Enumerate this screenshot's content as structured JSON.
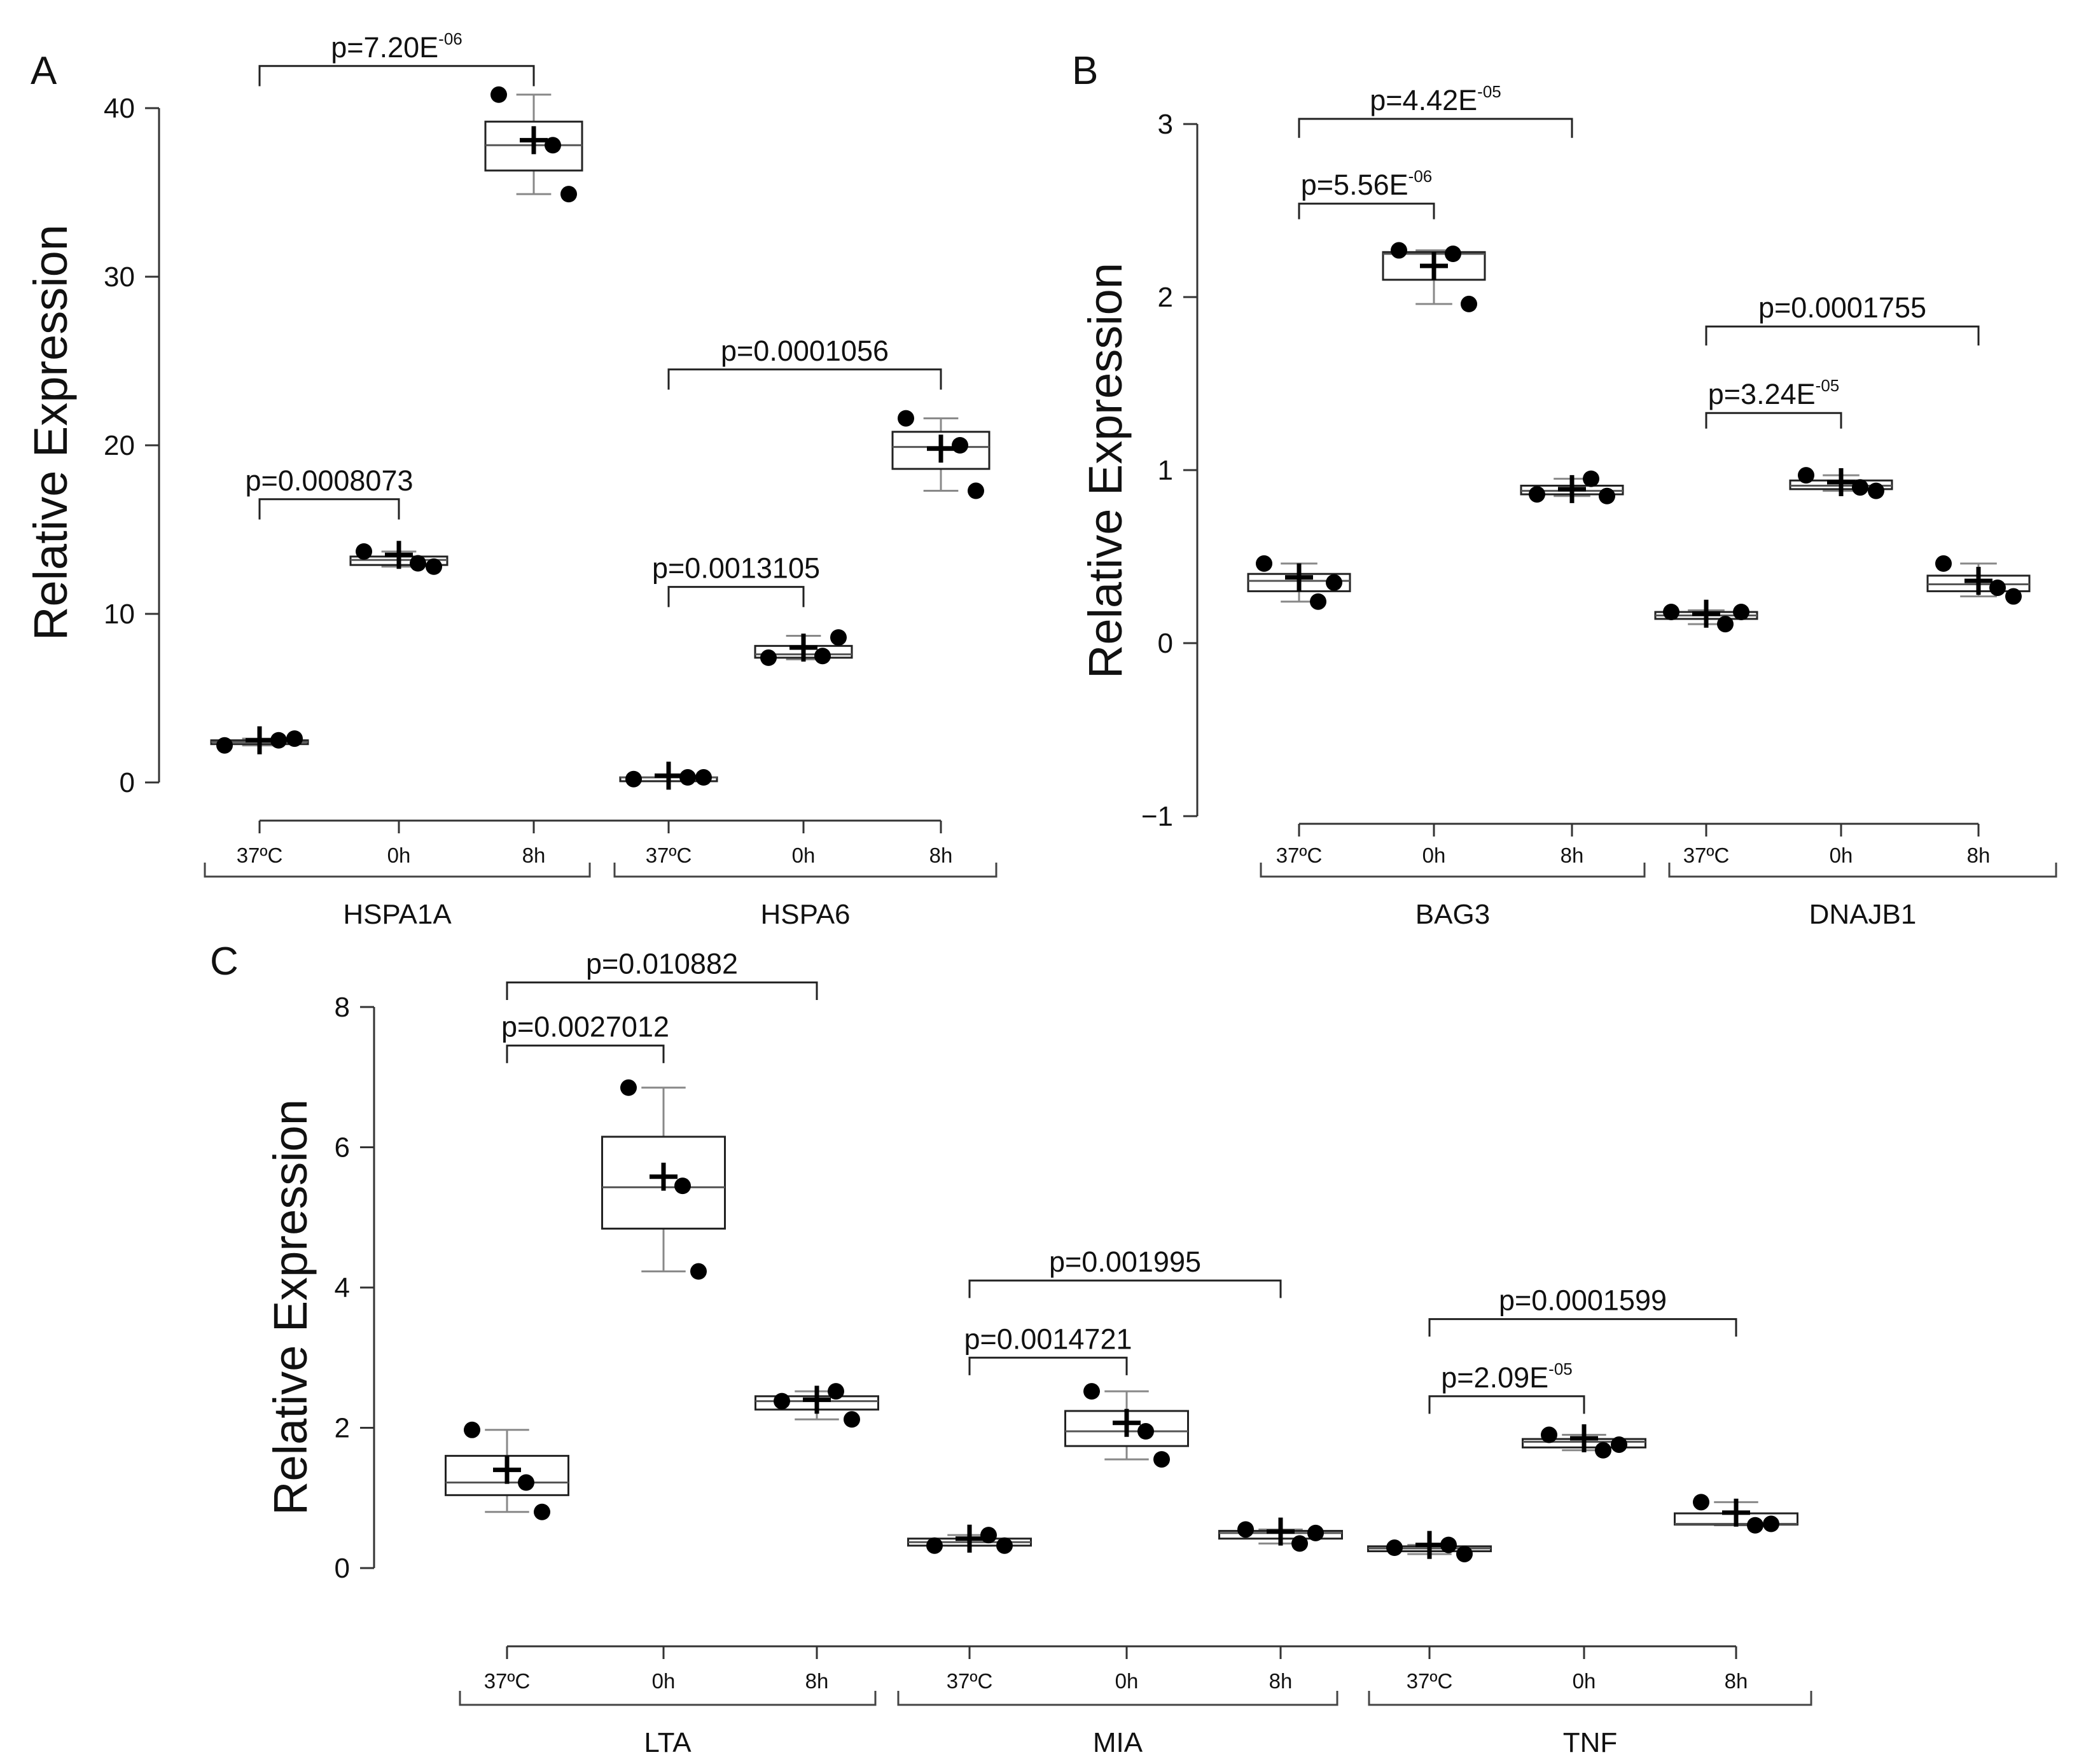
{
  "chart_data": [
    {
      "panel": "A",
      "type": "box",
      "ylabel": "Relative Expression",
      "ylim": [
        0,
        40
      ],
      "yticks": [
        0,
        10,
        20,
        30,
        40
      ],
      "groups": [
        {
          "name": "HSPA1A",
          "conditions": [
            {
              "label": "37ºC",
              "points": [
                2.2,
                2.5,
                2.6
              ],
              "mean": 2.5,
              "q1": 2.3,
              "median": 2.4,
              "q3": 2.5,
              "wlow": 2.2,
              "whigh": 2.6
            },
            {
              "label": "0h",
              "points": [
                13.7,
                13.0,
                12.8
              ],
              "mean": 13.5,
              "q1": 12.9,
              "median": 13.2,
              "q3": 13.4,
              "wlow": 12.8,
              "whigh": 13.7
            },
            {
              "label": "8h",
              "points": [
                40.8,
                37.8,
                34.9
              ],
              "mean": 38.1,
              "q1": 36.3,
              "median": 37.8,
              "q3": 39.2,
              "wlow": 34.9,
              "whigh": 40.8
            }
          ]
        },
        {
          "name": "HSPA6",
          "conditions": [
            {
              "label": "37ºC",
              "points": [
                0.2,
                0.3,
                0.3
              ],
              "mean": 0.4,
              "q1": 0.2,
              "median": 0.3,
              "q3": 0.3,
              "wlow": 0.2,
              "whigh": 0.3
            },
            {
              "label": "0h",
              "points": [
                7.4,
                7.5,
                8.6
              ],
              "mean": 8.0,
              "q1": 7.4,
              "median": 7.6,
              "q3": 8.1,
              "wlow": 7.3,
              "whigh": 8.7
            },
            {
              "label": "8h",
              "points": [
                21.6,
                20.0,
                17.3
              ],
              "mean": 19.8,
              "q1": 18.6,
              "median": 19.9,
              "q3": 20.8,
              "wlow": 17.3,
              "whigh": 21.6
            }
          ]
        }
      ],
      "comparisons": [
        {
          "label": "p=7.20E",
          "sup": "-06",
          "g1": 0,
          "c1": 0,
          "g2": 0,
          "c2": 2,
          "y": 42.5,
          "drop": 1.2
        },
        {
          "label": "p=0.0008073",
          "sup": "",
          "g1": 0,
          "c1": 0,
          "g2": 0,
          "c2": 1,
          "y": 16.8,
          "drop": 1.2
        },
        {
          "label": "p=0.0013105",
          "sup": "",
          "g1": 1,
          "c1": 0,
          "g2": 1,
          "c2": 1,
          "y": 11.6,
          "drop": 1.2
        },
        {
          "label": "p=0.0001056",
          "sup": "",
          "g1": 1,
          "c1": 0,
          "g2": 1,
          "c2": 2,
          "y": 24.5,
          "drop": 1.2
        }
      ]
    },
    {
      "panel": "B",
      "type": "box",
      "ylabel": "Relative Expression",
      "ylim": [
        -1,
        3
      ],
      "yticks": [
        -1,
        0,
        1,
        2,
        3
      ],
      "groups": [
        {
          "name": "BAG3",
          "conditions": [
            {
              "label": "37ºC",
              "points": [
                0.46,
                0.24,
                0.35
              ],
              "mean": 0.38,
              "q1": 0.3,
              "median": 0.36,
              "q3": 0.4,
              "wlow": 0.24,
              "whigh": 0.46
            },
            {
              "label": "0h",
              "points": [
                2.27,
                2.25,
                1.96
              ],
              "mean": 2.18,
              "q1": 2.1,
              "median": 2.25,
              "q3": 2.26,
              "wlow": 1.96,
              "whigh": 2.27
            },
            {
              "label": "8h",
              "points": [
                0.86,
                0.95,
                0.85
              ],
              "mean": 0.89,
              "q1": 0.86,
              "median": 0.88,
              "q3": 0.91,
              "wlow": 0.85,
              "whigh": 0.95
            }
          ]
        },
        {
          "name": "DNAJB1",
          "conditions": [
            {
              "label": "37ºC",
              "points": [
                0.18,
                0.11,
                0.18
              ],
              "mean": 0.17,
              "q1": 0.14,
              "median": 0.16,
              "q3": 0.18,
              "wlow": 0.11,
              "whigh": 0.19
            },
            {
              "label": "0h",
              "points": [
                0.97,
                0.9,
                0.88
              ],
              "mean": 0.93,
              "q1": 0.89,
              "median": 0.91,
              "q3": 0.94,
              "wlow": 0.88,
              "whigh": 0.97
            },
            {
              "label": "8h",
              "points": [
                0.46,
                0.32,
                0.27
              ],
              "mean": 0.36,
              "q1": 0.3,
              "median": 0.34,
              "q3": 0.39,
              "wlow": 0.27,
              "whigh": 0.46
            }
          ]
        }
      ],
      "comparisons": [
        {
          "label": "p=4.42E",
          "sup": "-05",
          "g1": 0,
          "c1": 0,
          "g2": 0,
          "c2": 2,
          "y": 3.03,
          "drop": 0.11
        },
        {
          "label": "p=5.56E",
          "sup": "-06",
          "g1": 0,
          "c1": 0,
          "g2": 0,
          "c2": 1,
          "y": 2.54,
          "drop": 0.09
        },
        {
          "label": "p=0.0001755",
          "sup": "",
          "g1": 1,
          "c1": 0,
          "g2": 1,
          "c2": 2,
          "y": 1.83,
          "drop": 0.11
        },
        {
          "label": "p=3.24E",
          "sup": "-05",
          "g1": 1,
          "c1": 0,
          "g2": 1,
          "c2": 1,
          "y": 1.33,
          "drop": 0.09
        }
      ]
    },
    {
      "panel": "C",
      "type": "box",
      "ylabel": "Relative Expression",
      "ylim": [
        0,
        8
      ],
      "yticks": [
        0,
        2,
        4,
        6,
        8
      ],
      "groups": [
        {
          "name": "LTA",
          "conditions": [
            {
              "label": "37ºC",
              "points": [
                1.97,
                1.22,
                0.8
              ],
              "mean": 1.4,
              "q1": 1.04,
              "median": 1.22,
              "q3": 1.6,
              "wlow": 0.8,
              "whigh": 1.97
            },
            {
              "label": "0h",
              "points": [
                6.85,
                5.45,
                4.23
              ],
              "mean": 5.58,
              "q1": 4.84,
              "median": 5.43,
              "q3": 6.15,
              "wlow": 4.23,
              "whigh": 6.85
            },
            {
              "label": "8h",
              "points": [
                2.38,
                2.52,
                2.12
              ],
              "mean": 2.4,
              "q1": 2.26,
              "median": 2.38,
              "q3": 2.45,
              "wlow": 2.12,
              "whigh": 2.52
            }
          ]
        },
        {
          "name": "MIA",
          "conditions": [
            {
              "label": "37ºC",
              "points": [
                0.32,
                0.47,
                0.32
              ],
              "mean": 0.42,
              "q1": 0.32,
              "median": 0.37,
              "q3": 0.42,
              "wlow": 0.32,
              "whigh": 0.47
            },
            {
              "label": "0h",
              "points": [
                2.52,
                1.95,
                1.55
              ],
              "mean": 2.07,
              "q1": 1.74,
              "median": 1.95,
              "q3": 2.24,
              "wlow": 1.55,
              "whigh": 2.52
            },
            {
              "label": "8h",
              "points": [
                0.55,
                0.35,
                0.5
              ],
              "mean": 0.52,
              "q1": 0.42,
              "median": 0.5,
              "q3": 0.53,
              "wlow": 0.35,
              "whigh": 0.55
            }
          ]
        },
        {
          "name": "TNF",
          "conditions": [
            {
              "label": "37ºC",
              "points": [
                0.29,
                0.33,
                0.2
              ],
              "mean": 0.33,
              "q1": 0.24,
              "median": 0.28,
              "q3": 0.31,
              "wlow": 0.2,
              "whigh": 0.33
            },
            {
              "label": "0h",
              "points": [
                1.9,
                1.68,
                1.76
              ],
              "mean": 1.85,
              "q1": 1.72,
              "median": 1.8,
              "q3": 1.84,
              "wlow": 1.68,
              "whigh": 1.9
            },
            {
              "label": "8h",
              "points": [
                0.94,
                0.61,
                0.63
              ],
              "mean": 0.79,
              "q1": 0.62,
              "median": 0.63,
              "q3": 0.78,
              "wlow": 0.61,
              "whigh": 0.94
            }
          ]
        }
      ],
      "comparisons": [
        {
          "label": "p=0.010882",
          "sup": "",
          "g1": 0,
          "c1": 0,
          "g2": 0,
          "c2": 2,
          "y": 8.35,
          "drop": 0.25
        },
        {
          "label": "p=0.0027012",
          "sup": "",
          "g1": 0,
          "c1": 0,
          "g2": 0,
          "c2": 1,
          "y": 7.45,
          "drop": 0.25
        },
        {
          "label": "p=0.001995",
          "sup": "",
          "g1": 1,
          "c1": 0,
          "g2": 1,
          "c2": 2,
          "y": 4.1,
          "drop": 0.25
        },
        {
          "label": "p=0.0014721",
          "sup": "",
          "g1": 1,
          "c1": 0,
          "g2": 1,
          "c2": 1,
          "y": 3.0,
          "drop": 0.25
        },
        {
          "label": "p=0.0001599",
          "sup": "",
          "g1": 2,
          "c1": 0,
          "g2": 2,
          "c2": 2,
          "y": 3.55,
          "drop": 0.25
        },
        {
          "label": "p=2.09E",
          "sup": "-05",
          "g1": 2,
          "c1": 0,
          "g2": 2,
          "c2": 1,
          "y": 2.45,
          "drop": 0.25
        }
      ]
    }
  ]
}
